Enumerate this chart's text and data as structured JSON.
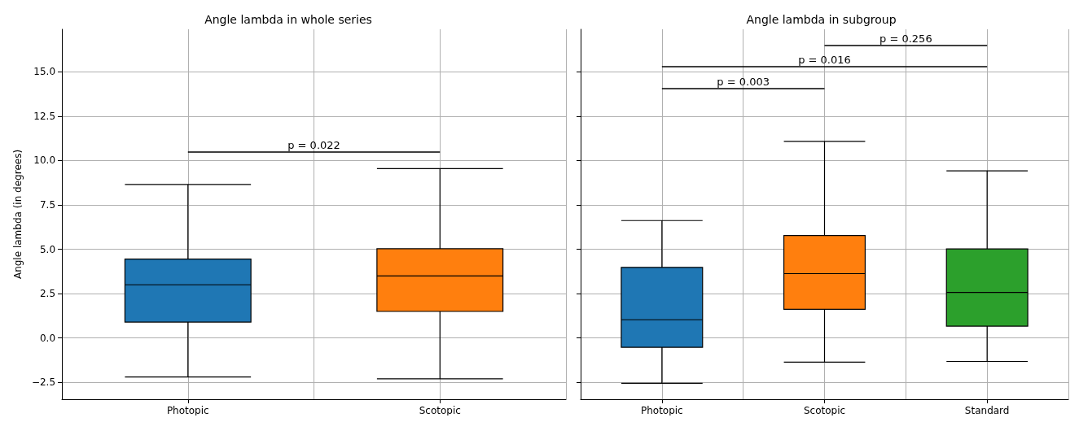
{
  "chart_data": [
    {
      "type": "box",
      "title": "Angle lambda in whole series",
      "ylabel": "Angle lambda (in degrees)",
      "categories": [
        "Photopic",
        "Scotopic"
      ],
      "boxes": [
        {
          "low": -2.2,
          "q1": 0.9,
          "median": 3.0,
          "q3": 4.45,
          "high": 8.65
        },
        {
          "low": -2.3,
          "q1": 1.5,
          "median": 3.5,
          "q3": 5.03,
          "high": 9.55
        }
      ],
      "colors": [
        "#1f77b4",
        "#ff7f0e"
      ],
      "ylim": [
        -3.45,
        17.4
      ],
      "yticks": [
        {
          "value": -2.5,
          "label": "−2.5"
        },
        {
          "value": 0,
          "label": "0.0"
        },
        {
          "value": 2.5,
          "label": "2.5"
        },
        {
          "value": 5,
          "label": "5.0"
        },
        {
          "value": 7.5,
          "label": "7.5"
        },
        {
          "value": 10,
          "label": "10.0"
        },
        {
          "value": 12.5,
          "label": "12.5"
        },
        {
          "value": 15,
          "label": "15.0"
        }
      ],
      "grid": true,
      "annotations": [
        "p = 0.022"
      ]
    },
    {
      "type": "box",
      "title": "Angle lambda in subgroup",
      "categories": [
        "Photopic",
        "Scotopic",
        "Standard"
      ],
      "boxes": [
        {
          "low": -2.55,
          "q1": -0.52,
          "median": 1.03,
          "q3": 3.98,
          "high": 6.62
        },
        {
          "low": -1.36,
          "q1": 1.62,
          "median": 3.63,
          "q3": 5.78,
          "high": 11.08
        },
        {
          "low": -1.32,
          "q1": 0.67,
          "median": 2.57,
          "q3": 5.02,
          "high": 9.42
        }
      ],
      "colors": [
        "#1f77b4",
        "#ff7f0e",
        "#2ca02c"
      ],
      "ylim": [
        -3.45,
        17.4
      ],
      "yticks": [
        {
          "value": -2.5,
          "label": null
        },
        {
          "value": 0,
          "label": null
        },
        {
          "value": 2.5,
          "label": null
        },
        {
          "value": 5,
          "label": null
        },
        {
          "value": 7.5,
          "label": null
        },
        {
          "value": 10,
          "label": null
        },
        {
          "value": 12.5,
          "label": null
        },
        {
          "value": 15,
          "label": null
        }
      ],
      "grid": true,
      "tick_labels": "x",
      "annotations": [
        "p = 0.003",
        "p = 0.016",
        "p = 0.256"
      ]
    }
  ]
}
